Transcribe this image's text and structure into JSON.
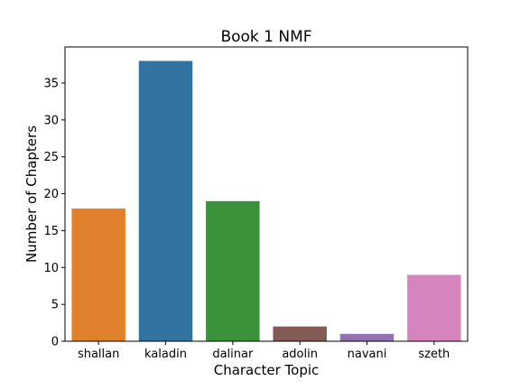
{
  "chart_data": {
    "type": "bar",
    "title": "Book 1 NMF",
    "xlabel": "Character Topic",
    "ylabel": "Number of Chapters",
    "categories": [
      "shallan",
      "kaladin",
      "dalinar",
      "adolin",
      "navani",
      "szeth"
    ],
    "values": [
      18,
      38,
      19,
      2,
      1,
      9
    ],
    "colors": [
      "#e1812c",
      "#3274a1",
      "#3a923a",
      "#845b53",
      "#9372b2",
      "#d684bd"
    ],
    "ylim": [
      0,
      39.9
    ],
    "yticks": [
      0,
      5,
      10,
      15,
      20,
      25,
      30,
      35
    ],
    "grid": false,
    "legend": "none"
  }
}
